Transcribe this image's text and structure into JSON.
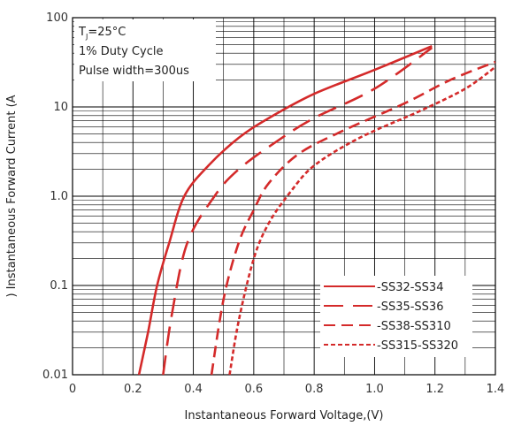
{
  "chart_data": {
    "type": "line",
    "xlabel": "Instantaneous Forward Voltage,(V)",
    "ylabel": ") Instantaneous Forward Current (A",
    "xlim": [
      0,
      1.4
    ],
    "ylim": [
      0.01,
      100
    ],
    "yscale": "log",
    "grid": true,
    "x_ticks": [
      "0",
      "0.2",
      "0.4",
      "0.6",
      "0.8",
      "1.0",
      "1.2",
      "1.4"
    ],
    "y_ticks": [
      "0.01",
      "0.1",
      "1.0",
      "10",
      "100"
    ],
    "annotation": {
      "line1_main": "T",
      "line1_sub": "J",
      "line1_rest": "=25°C",
      "line2": "1% Duty Cycle",
      "line3": "Pulse width=300us"
    },
    "legend_position": "bottom-right",
    "series": [
      {
        "name": "SS32-SS34",
        "dash": "solid",
        "color": "#d42a2a",
        "points": [
          [
            0.22,
            0.01
          ],
          [
            0.25,
            0.03
          ],
          [
            0.28,
            0.1
          ],
          [
            0.32,
            0.3
          ],
          [
            0.37,
            1.0
          ],
          [
            0.45,
            2.2
          ],
          [
            0.55,
            4.5
          ],
          [
            0.65,
            7.5
          ],
          [
            0.8,
            14
          ],
          [
            1.0,
            26
          ],
          [
            1.19,
            48
          ]
        ]
      },
      {
        "name": "SS35-SS36",
        "dash": "long-dash",
        "color": "#d42a2a",
        "points": [
          [
            0.3,
            0.01
          ],
          [
            0.33,
            0.05
          ],
          [
            0.38,
            0.3
          ],
          [
            0.47,
            1.0
          ],
          [
            0.55,
            2.0
          ],
          [
            0.68,
            4.2
          ],
          [
            0.8,
            7.5
          ],
          [
            1.0,
            16
          ],
          [
            1.19,
            46
          ]
        ]
      },
      {
        "name": "SS38-SS310",
        "dash": "dash",
        "color": "#d42a2a",
        "points": [
          [
            0.46,
            0.01
          ],
          [
            0.5,
            0.07
          ],
          [
            0.55,
            0.3
          ],
          [
            0.6,
            0.7
          ],
          [
            0.65,
            1.4
          ],
          [
            0.75,
            3.0
          ],
          [
            0.9,
            5.5
          ],
          [
            1.1,
            11
          ],
          [
            1.25,
            20
          ],
          [
            1.4,
            32
          ]
        ]
      },
      {
        "name": "SS315-SS320",
        "dash": "short-dash",
        "color": "#d42a2a",
        "points": [
          [
            0.52,
            0.01
          ],
          [
            0.55,
            0.04
          ],
          [
            0.6,
            0.2
          ],
          [
            0.65,
            0.5
          ],
          [
            0.72,
            1.1
          ],
          [
            0.8,
            2.2
          ],
          [
            0.95,
            4.5
          ],
          [
            1.15,
            9
          ],
          [
            1.3,
            16
          ],
          [
            1.4,
            28
          ]
        ]
      }
    ]
  }
}
